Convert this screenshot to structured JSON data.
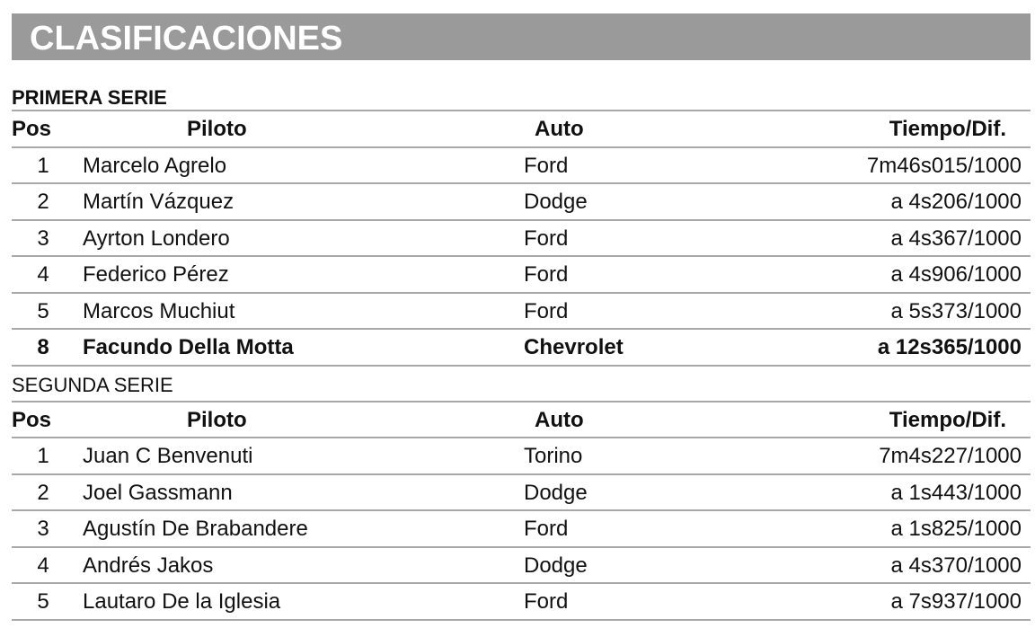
{
  "title": "CLASIFICACIONES",
  "headers": {
    "pos": "Pos",
    "piloto": "Piloto",
    "auto": "Auto",
    "tiempo": "Tiempo/Dif."
  },
  "series": [
    {
      "name": "PRIMERA SERIE",
      "rows": [
        {
          "pos": "1",
          "piloto": "Marcelo Agrelo",
          "auto": "Ford",
          "tiempo": "7m46s015/1000"
        },
        {
          "pos": "2",
          "piloto": "Martín Vázquez",
          "auto": "Dodge",
          "tiempo": "a 4s206/1000"
        },
        {
          "pos": "3",
          "piloto": "Ayrton Londero",
          "auto": "Ford",
          "tiempo": "a 4s367/1000"
        },
        {
          "pos": "4",
          "piloto": "Federico Pérez",
          "auto": "Ford",
          "tiempo": "a 4s906/1000"
        },
        {
          "pos": "5",
          "piloto": "Marcos Muchiut",
          "auto": "Ford",
          "tiempo": "a 5s373/1000"
        },
        {
          "pos": "8",
          "piloto": "Facundo Della Motta",
          "auto": "Chevrolet",
          "tiempo": "a 12s365/1000",
          "highlight": true
        }
      ]
    },
    {
      "name": "SEGUNDA SERIE",
      "rows": [
        {
          "pos": "1",
          "piloto": "Juan C Benvenuti",
          "auto": "Torino",
          "tiempo": "7m4s227/1000"
        },
        {
          "pos": "2",
          "piloto": "Joel Gassmann",
          "auto": "Dodge",
          "tiempo": "a 1s443/1000"
        },
        {
          "pos": "3",
          "piloto": "Agustín De Brabandere",
          "auto": "Ford",
          "tiempo": "a 1s825/1000"
        },
        {
          "pos": "4",
          "piloto": "Andrés Jakos",
          "auto": "Dodge",
          "tiempo": "a 4s370/1000"
        },
        {
          "pos": "5",
          "piloto": "Lautaro De la Iglesia",
          "auto": "Ford",
          "tiempo": "a 7s937/1000"
        }
      ]
    }
  ]
}
